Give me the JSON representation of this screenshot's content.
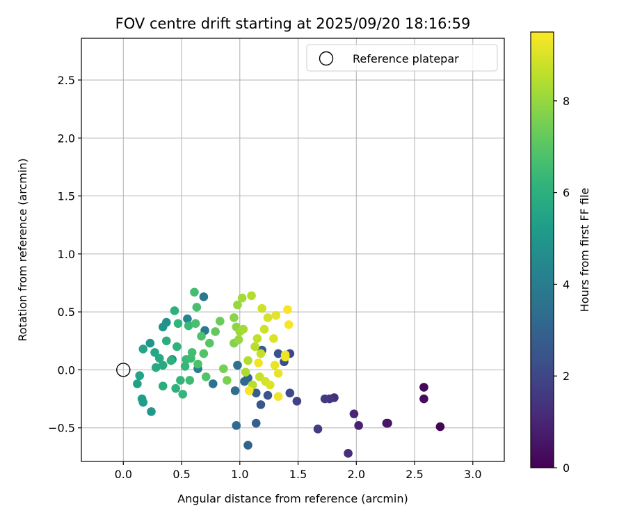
{
  "chart_data": {
    "type": "scatter",
    "title": "FOV centre drift starting at 2025/09/20 18:16:59",
    "xlabel": "Angular distance from reference (arcmin)",
    "ylabel": "Rotation from reference (arcmin)",
    "xlim": [
      -0.36,
      3.27
    ],
    "ylim": [
      -0.79,
      2.86
    ],
    "xticks": [
      0.0,
      0.5,
      1.0,
      1.5,
      2.0,
      2.5,
      3.0
    ],
    "xtick_labels": [
      "0.0",
      "0.5",
      "1.0",
      "1.5",
      "2.0",
      "2.5",
      "3.0"
    ],
    "yticks": [
      -0.5,
      0.0,
      0.5,
      1.0,
      1.5,
      2.0,
      2.5
    ],
    "ytick_labels": [
      "−0.5",
      "0.0",
      "0.5",
      "1.0",
      "1.5",
      "2.0",
      "2.5"
    ],
    "grid": true,
    "legend": {
      "position": "top-right",
      "entries": [
        "Reference platepar"
      ]
    },
    "reference": {
      "x": 0.0,
      "y": 0.0,
      "label": "Reference platepar"
    },
    "colorbar": {
      "label": "Hours from first FF file",
      "colormap": "viridis",
      "range": [
        0,
        9.5
      ],
      "ticks": [
        0,
        2,
        4,
        6,
        8
      ],
      "tick_labels": [
        "0",
        "2",
        "4",
        "6",
        "8"
      ]
    },
    "color_field": "hours",
    "points": [
      {
        "x": 2.72,
        "y": -0.49,
        "hours": 0.1
      },
      {
        "x": 2.58,
        "y": -0.15,
        "hours": 0.2
      },
      {
        "x": 2.58,
        "y": -0.25,
        "hours": 0.3
      },
      {
        "x": 2.26,
        "y": -0.46,
        "hours": 0.5
      },
      {
        "x": 2.27,
        "y": -0.46,
        "hours": 0.6
      },
      {
        "x": 2.02,
        "y": -0.48,
        "hours": 0.9
      },
      {
        "x": 1.98,
        "y": -0.38,
        "hours": 1.0
      },
      {
        "x": 1.93,
        "y": -0.72,
        "hours": 1.2
      },
      {
        "x": 1.81,
        "y": -0.24,
        "hours": 1.3
      },
      {
        "x": 1.77,
        "y": -0.25,
        "hours": 1.5
      },
      {
        "x": 1.73,
        "y": -0.25,
        "hours": 1.6
      },
      {
        "x": 1.67,
        "y": -0.51,
        "hours": 1.7
      },
      {
        "x": 1.49,
        "y": -0.27,
        "hours": 1.9
      },
      {
        "x": 1.43,
        "y": 0.14,
        "hours": 2.0
      },
      {
        "x": 1.43,
        "y": -0.2,
        "hours": 2.1
      },
      {
        "x": 1.38,
        "y": 0.07,
        "hours": 2.3
      },
      {
        "x": 1.33,
        "y": 0.14,
        "hours": 2.4
      },
      {
        "x": 1.24,
        "y": -0.22,
        "hours": 2.5
      },
      {
        "x": 1.18,
        "y": -0.3,
        "hours": 2.6
      },
      {
        "x": 1.19,
        "y": 0.17,
        "hours": 2.7
      },
      {
        "x": 1.14,
        "y": -0.2,
        "hours": 2.8
      },
      {
        "x": 1.14,
        "y": -0.46,
        "hours": 2.9
      },
      {
        "x": 1.07,
        "y": -0.65,
        "hours": 3.0
      },
      {
        "x": 1.07,
        "y": -0.07,
        "hours": 3.1
      },
      {
        "x": 1.04,
        "y": -0.1,
        "hours": 3.2
      },
      {
        "x": 0.97,
        "y": -0.48,
        "hours": 3.3
      },
      {
        "x": 0.96,
        "y": -0.18,
        "hours": 3.4
      },
      {
        "x": 0.98,
        "y": 0.04,
        "hours": 3.5
      },
      {
        "x": 0.77,
        "y": -0.12,
        "hours": 3.6
      },
      {
        "x": 0.69,
        "y": 0.63,
        "hours": 3.8
      },
      {
        "x": 0.7,
        "y": 0.34,
        "hours": 3.9
      },
      {
        "x": 0.64,
        "y": 0.01,
        "hours": 4.1
      },
      {
        "x": 0.55,
        "y": 0.44,
        "hours": 4.3
      },
      {
        "x": 0.42,
        "y": 0.09,
        "hours": 4.6
      },
      {
        "x": 0.37,
        "y": 0.41,
        "hours": 4.8
      },
      {
        "x": 0.34,
        "y": 0.37,
        "hours": 4.9
      },
      {
        "x": 0.23,
        "y": 0.23,
        "hours": 5.0
      },
      {
        "x": 0.24,
        "y": -0.36,
        "hours": 5.1
      },
      {
        "x": 0.17,
        "y": -0.28,
        "hours": 5.2
      },
      {
        "x": 0.16,
        "y": -0.25,
        "hours": 5.3
      },
      {
        "x": 0.12,
        "y": -0.12,
        "hours": 5.4
      },
      {
        "x": 0.14,
        "y": -0.05,
        "hours": 5.5
      },
      {
        "x": 0.17,
        "y": 0.18,
        "hours": 5.5
      },
      {
        "x": 0.27,
        "y": 0.15,
        "hours": 5.6
      },
      {
        "x": 0.28,
        "y": 0.02,
        "hours": 5.7
      },
      {
        "x": 0.31,
        "y": 0.1,
        "hours": 5.7
      },
      {
        "x": 0.34,
        "y": 0.04,
        "hours": 5.8
      },
      {
        "x": 0.34,
        "y": -0.14,
        "hours": 5.9
      },
      {
        "x": 0.37,
        "y": 0.25,
        "hours": 5.9
      },
      {
        "x": 0.41,
        "y": 0.08,
        "hours": 6.0
      },
      {
        "x": 0.44,
        "y": 0.51,
        "hours": 6.0
      },
      {
        "x": 0.45,
        "y": -0.16,
        "hours": 6.1
      },
      {
        "x": 0.46,
        "y": 0.2,
        "hours": 6.1
      },
      {
        "x": 0.47,
        "y": 0.4,
        "hours": 6.2
      },
      {
        "x": 0.49,
        "y": -0.09,
        "hours": 6.2
      },
      {
        "x": 0.51,
        "y": -0.21,
        "hours": 6.3
      },
      {
        "x": 0.53,
        "y": 0.03,
        "hours": 6.3
      },
      {
        "x": 0.54,
        "y": 0.09,
        "hours": 6.4
      },
      {
        "x": 0.56,
        "y": 0.38,
        "hours": 6.4
      },
      {
        "x": 0.57,
        "y": -0.09,
        "hours": 6.5
      },
      {
        "x": 0.58,
        "y": 0.1,
        "hours": 6.5
      },
      {
        "x": 0.59,
        "y": 0.15,
        "hours": 6.6
      },
      {
        "x": 0.61,
        "y": 0.67,
        "hours": 6.6
      },
      {
        "x": 0.62,
        "y": 0.4,
        "hours": 6.7
      },
      {
        "x": 0.63,
        "y": 0.54,
        "hours": 6.7
      },
      {
        "x": 0.64,
        "y": 0.05,
        "hours": 6.8
      },
      {
        "x": 0.67,
        "y": 0.29,
        "hours": 6.8
      },
      {
        "x": 0.69,
        "y": 0.14,
        "hours": 6.9
      },
      {
        "x": 0.71,
        "y": -0.06,
        "hours": 6.9
      },
      {
        "x": 0.74,
        "y": 0.23,
        "hours": 7.0
      },
      {
        "x": 0.79,
        "y": 0.33,
        "hours": 7.2
      },
      {
        "x": 0.83,
        "y": 0.42,
        "hours": 7.3
      },
      {
        "x": 0.86,
        "y": 0.01,
        "hours": 7.5
      },
      {
        "x": 0.89,
        "y": -0.09,
        "hours": 7.6
      },
      {
        "x": 0.95,
        "y": 0.23,
        "hours": 7.7
      },
      {
        "x": 0.95,
        "y": 0.45,
        "hours": 7.8
      },
      {
        "x": 0.97,
        "y": 0.37,
        "hours": 7.9
      },
      {
        "x": 0.98,
        "y": 0.56,
        "hours": 8.0
      },
      {
        "x": 0.99,
        "y": 0.26,
        "hours": 8.0
      },
      {
        "x": 1.0,
        "y": 0.33,
        "hours": 8.1
      },
      {
        "x": 1.02,
        "y": 0.62,
        "hours": 8.2
      },
      {
        "x": 1.03,
        "y": 0.35,
        "hours": 8.2
      },
      {
        "x": 1.05,
        "y": -0.02,
        "hours": 8.3
      },
      {
        "x": 1.07,
        "y": 0.08,
        "hours": 8.4
      },
      {
        "x": 1.1,
        "y": 0.64,
        "hours": 8.4
      },
      {
        "x": 1.11,
        "y": -0.13,
        "hours": 8.5
      },
      {
        "x": 1.13,
        "y": 0.2,
        "hours": 8.5
      },
      {
        "x": 1.15,
        "y": 0.27,
        "hours": 8.6
      },
      {
        "x": 1.17,
        "y": -0.06,
        "hours": 8.7
      },
      {
        "x": 1.18,
        "y": 0.14,
        "hours": 8.7
      },
      {
        "x": 1.19,
        "y": 0.53,
        "hours": 8.8
      },
      {
        "x": 1.21,
        "y": 0.35,
        "hours": 8.8
      },
      {
        "x": 1.22,
        "y": -0.1,
        "hours": 8.9
      },
      {
        "x": 1.24,
        "y": 0.45,
        "hours": 8.9
      },
      {
        "x": 1.26,
        "y": -0.13,
        "hours": 9.0
      },
      {
        "x": 1.29,
        "y": 0.27,
        "hours": 9.0
      },
      {
        "x": 1.31,
        "y": 0.47,
        "hours": 9.1
      },
      {
        "x": 1.33,
        "y": -0.03,
        "hours": 9.2
      },
      {
        "x": 1.33,
        "y": -0.23,
        "hours": 9.3
      },
      {
        "x": 1.39,
        "y": 0.13,
        "hours": 9.3
      },
      {
        "x": 1.41,
        "y": 0.52,
        "hours": 9.4
      },
      {
        "x": 1.42,
        "y": 0.39,
        "hours": 9.4
      },
      {
        "x": 1.08,
        "y": -0.18,
        "hours": 9.4
      },
      {
        "x": 1.16,
        "y": 0.06,
        "hours": 9.3
      },
      {
        "x": 1.3,
        "y": 0.04,
        "hours": 9.2
      },
      {
        "x": 1.39,
        "y": 0.11,
        "hours": 9.3
      }
    ]
  }
}
